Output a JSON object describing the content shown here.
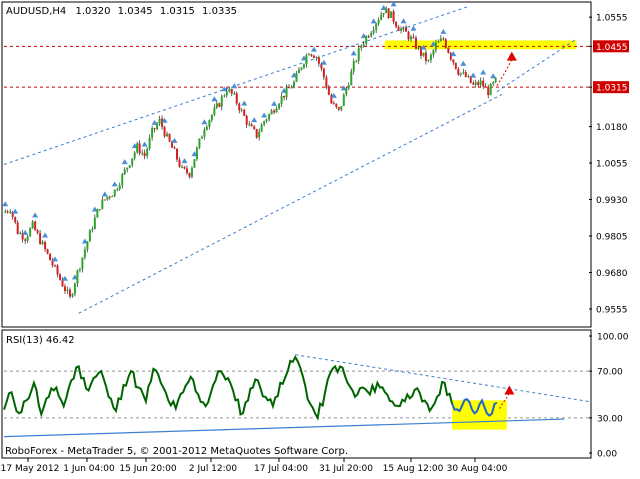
{
  "chart_data": [
    {
      "type": "candlestick",
      "header": {
        "symbol": "AUDUSD,H4",
        "open": "1.0320",
        "high": "1.0345",
        "low": "1.0315",
        "close": "1.0335"
      },
      "ylim": [
        0.95,
        1.06
      ],
      "y_ticks": [
        "1.0555",
        "1.0455",
        "1.0315",
        "1.0180",
        "1.0055",
        "0.9930",
        "0.9805",
        "0.9680",
        "0.9555"
      ],
      "y_tick_values": [
        1.0555,
        1.0455,
        1.0315,
        1.018,
        1.0055,
        0.993,
        0.9805,
        0.968,
        0.9555
      ],
      "highlighted_levels": [
        {
          "label": "1.0455",
          "value": 1.0455
        },
        {
          "label": "1.0315",
          "value": 1.0315
        }
      ],
      "price_path": [
        [
          0,
          0.9885
        ],
        [
          6,
          0.99
        ],
        [
          12,
          0.982
        ],
        [
          18,
          0.98
        ],
        [
          24,
          0.984
        ],
        [
          30,
          0.979
        ],
        [
          36,
          0.974
        ],
        [
          42,
          0.969
        ],
        [
          48,
          0.964
        ],
        [
          54,
          0.959
        ],
        [
          60,
          0.968
        ],
        [
          66,
          0.976
        ],
        [
          72,
          0.984
        ],
        [
          78,
          0.991
        ],
        [
          84,
          0.994
        ],
        [
          90,
          0.996
        ],
        [
          96,
          1.001
        ],
        [
          102,
          1.006
        ],
        [
          108,
          1.011
        ],
        [
          114,
          1.008
        ],
        [
          120,
          1.016
        ],
        [
          126,
          1.02
        ],
        [
          132,
          1.014
        ],
        [
          138,
          1.009
        ],
        [
          144,
          1.003
        ],
        [
          150,
          1.002
        ],
        [
          156,
          1.01
        ],
        [
          162,
          1.018
        ],
        [
          168,
          1.022
        ],
        [
          174,
          1.026
        ],
        [
          180,
          1.031
        ],
        [
          186,
          1.028
        ],
        [
          192,
          1.023
        ],
        [
          198,
          1.018
        ],
        [
          204,
          1.015
        ],
        [
          210,
          1.02
        ],
        [
          216,
          1.023
        ],
        [
          222,
          1.027
        ],
        [
          228,
          1.03
        ],
        [
          234,
          1.033
        ],
        [
          240,
          1.039
        ],
        [
          246,
          1.044
        ],
        [
          252,
          1.042
        ],
        [
          258,
          1.035
        ],
        [
          264,
          1.026
        ],
        [
          270,
          1.023
        ],
        [
          276,
          1.031
        ],
        [
          282,
          1.039
        ],
        [
          288,
          1.046
        ],
        [
          294,
          1.05
        ],
        [
          300,
          1.054
        ],
        [
          306,
          1.058
        ],
        [
          312,
          1.056
        ],
        [
          318,
          1.052
        ],
        [
          324,
          1.05
        ],
        [
          330,
          1.047
        ],
        [
          336,
          1.043
        ],
        [
          342,
          1.04
        ],
        [
          348,
          1.046
        ],
        [
          354,
          1.048
        ],
        [
          360,
          1.042
        ],
        [
          366,
          1.037
        ],
        [
          372,
          1.035
        ],
        [
          378,
          1.032
        ],
        [
          384,
          1.033
        ],
        [
          390,
          1.03
        ],
        [
          396,
          1.0335
        ]
      ],
      "forecast_arrow": {
        "from": [
          396,
          1.032
        ],
        "to": [
          408,
          1.043
        ]
      },
      "channel": {
        "upper": [
          [
            0,
            1.005
          ],
          [
            372,
            1.059
          ]
        ],
        "lower": [
          [
            60,
            0.954
          ],
          [
            400,
            1.029
          ]
        ],
        "inner": [
          [
            396,
            1.03
          ],
          [
            460,
            1.048
          ]
        ]
      },
      "highlight_box": {
        "x": [
          306,
          460
        ],
        "y": [
          1.0445,
          1.0475
        ]
      }
    },
    {
      "type": "line",
      "header": "RSI(13) 46.42",
      "ylim": [
        0,
        100
      ],
      "y_ticks": [
        "100.00",
        "70.00",
        "30.00",
        "0.00"
      ],
      "y_tick_values": [
        100,
        70,
        30,
        0
      ],
      "rsi_path": [
        [
          0,
          37
        ],
        [
          6,
          52
        ],
        [
          12,
          34
        ],
        [
          18,
          45
        ],
        [
          24,
          60
        ],
        [
          30,
          33
        ],
        [
          36,
          48
        ],
        [
          42,
          56
        ],
        [
          48,
          40
        ],
        [
          54,
          62
        ],
        [
          60,
          74
        ],
        [
          66,
          55
        ],
        [
          72,
          64
        ],
        [
          78,
          70
        ],
        [
          84,
          48
        ],
        [
          90,
          36
        ],
        [
          96,
          58
        ],
        [
          102,
          70
        ],
        [
          108,
          56
        ],
        [
          114,
          44
        ],
        [
          120,
          72
        ],
        [
          126,
          60
        ],
        [
          132,
          45
        ],
        [
          138,
          38
        ],
        [
          144,
          52
        ],
        [
          150,
          65
        ],
        [
          156,
          50
        ],
        [
          162,
          40
        ],
        [
          168,
          58
        ],
        [
          174,
          70
        ],
        [
          180,
          64
        ],
        [
          186,
          45
        ],
        [
          192,
          34
        ],
        [
          198,
          55
        ],
        [
          204,
          62
        ],
        [
          210,
          48
        ],
        [
          216,
          40
        ],
        [
          222,
          60
        ],
        [
          228,
          70
        ],
        [
          234,
          82
        ],
        [
          240,
          66
        ],
        [
          246,
          42
        ],
        [
          252,
          30
        ],
        [
          258,
          52
        ],
        [
          264,
          72
        ],
        [
          270,
          74
        ],
        [
          276,
          60
        ],
        [
          282,
          48
        ],
        [
          288,
          56
        ],
        [
          294,
          50
        ],
        [
          300,
          60
        ],
        [
          306,
          52
        ],
        [
          312,
          44
        ],
        [
          318,
          40
        ],
        [
          324,
          50
        ],
        [
          330,
          54
        ],
        [
          336,
          44
        ],
        [
          342,
          36
        ],
        [
          348,
          48
        ],
        [
          354,
          60
        ],
        [
          360,
          42
        ]
      ],
      "rsi_forecast_path": [
        [
          360,
          42
        ],
        [
          366,
          36
        ],
        [
          372,
          46
        ],
        [
          378,
          34
        ],
        [
          384,
          45
        ],
        [
          390,
          32
        ],
        [
          396,
          43
        ]
      ],
      "forecast_arrow": {
        "from": [
          398,
          38
        ],
        "to": [
          406,
          56
        ]
      },
      "trendlines": {
        "resistance": [
          [
            234,
            84
          ],
          [
            470,
            44
          ]
        ],
        "support": [
          [
            0,
            14
          ],
          [
            450,
            29
          ]
        ]
      },
      "highlight_box": {
        "x": [
          360,
          404
        ],
        "y": [
          20,
          45
        ]
      },
      "copyright": "RoboForex - MetaTrader 5, © 2001-2012 MetaQuotes Software Corp.",
      "x_ticks": [
        "17 May 2012",
        "1 Jun 04:00",
        "15 Jun 20:00",
        "2 Jul 12:00",
        "17 Jul 04:00",
        "31 Jul 20:00",
        "15 Aug 12:00",
        "30 Aug 04:00"
      ]
    }
  ],
  "colors": {
    "bull": "#2ca52c",
    "bear": "#d62020",
    "fractal": "#4a8fd6",
    "channel": "#3a7fd0",
    "level_line": "#d00000",
    "rsi": "#006400",
    "rsi_forecast": "#1f63d0",
    "highlight": "#ffff00",
    "arrow": "#e00000",
    "pricebox": "#d00000"
  }
}
